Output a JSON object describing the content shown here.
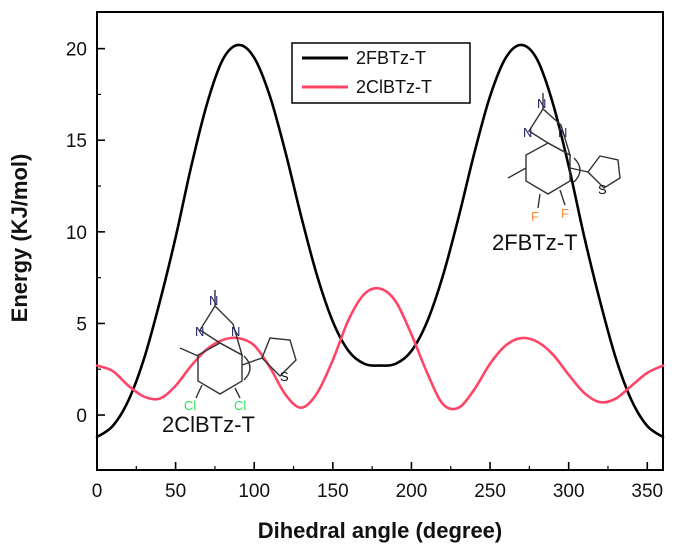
{
  "chart_data": {
    "type": "line",
    "title": "",
    "xlabel": "Dihedral angle (degree)",
    "ylabel": "Energy (KJ/mol)",
    "xlim": [
      0,
      360
    ],
    "ylim": [
      -3,
      22
    ],
    "xticks": [
      0,
      50,
      100,
      150,
      200,
      250,
      300,
      350
    ],
    "yticks": [
      0,
      5,
      10,
      15,
      20
    ],
    "grid": false,
    "legend_position": "top-center",
    "series": [
      {
        "name": "2FBTz-T",
        "color": "#000000",
        "x": [
          0,
          10,
          20,
          30,
          40,
          50,
          60,
          70,
          80,
          90,
          100,
          110,
          120,
          130,
          140,
          150,
          160,
          170,
          180,
          190,
          200,
          210,
          220,
          230,
          240,
          250,
          260,
          270,
          280,
          290,
          300,
          310,
          320,
          330,
          340,
          350,
          360
        ],
        "y": [
          -1.2,
          -0.6,
          0.8,
          3.1,
          6.2,
          9.7,
          13.6,
          17.0,
          19.4,
          20.2,
          19.5,
          17.4,
          14.3,
          10.8,
          7.6,
          5.1,
          3.5,
          2.8,
          2.7,
          2.8,
          3.5,
          5.1,
          7.6,
          10.8,
          14.3,
          17.4,
          19.5,
          20.2,
          19.4,
          17.0,
          13.6,
          9.7,
          6.2,
          3.1,
          0.8,
          -0.6,
          -1.2
        ]
      },
      {
        "name": "2ClBTz-T",
        "color": "#ff4466",
        "x": [
          0,
          10,
          20,
          30,
          40,
          50,
          60,
          70,
          80,
          90,
          100,
          110,
          120,
          130,
          140,
          150,
          160,
          170,
          180,
          190,
          200,
          210,
          220,
          230,
          240,
          250,
          260,
          270,
          280,
          290,
          300,
          310,
          320,
          330,
          340,
          350,
          360
        ],
        "y": [
          2.7,
          2.4,
          1.6,
          1.0,
          0.9,
          1.6,
          2.7,
          3.6,
          4.1,
          4.2,
          3.8,
          2.6,
          1.1,
          0.4,
          1.2,
          3.0,
          5.2,
          6.6,
          6.9,
          6.2,
          4.4,
          2.3,
          0.6,
          0.4,
          1.4,
          2.8,
          3.8,
          4.2,
          4.0,
          3.3,
          2.2,
          1.2,
          0.7,
          0.9,
          1.6,
          2.3,
          2.7
        ]
      }
    ],
    "annotations": [
      {
        "text": "2FBTz-T"
      },
      {
        "text": "2ClBTz-T"
      }
    ]
  },
  "molecule_labels": {
    "atom_n": "N",
    "atom_s": "S",
    "atom_f": "F",
    "atom_cl": "Cl"
  },
  "colors": {
    "fluorine": "#ff8a3c",
    "chlorine": "#2ee05a",
    "nitrogen": "#222266",
    "sulfur": "#111111"
  }
}
